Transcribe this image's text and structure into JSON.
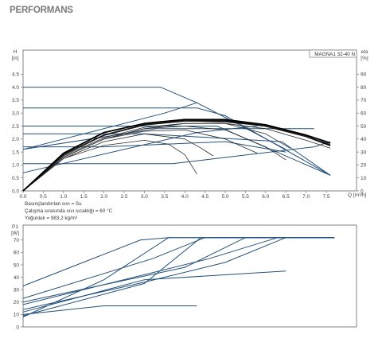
{
  "heading": "PERFORMANS",
  "legend_box": "MAGNA1 32-40 N",
  "fluid_notes": {
    "line1": "Basınçlandırılan sıvı = Su",
    "line2": "Çalışma sırasında sıvı sıcaklığı = 60 °C",
    "line3": "Yoğunluk = 983.2 kg/m³"
  },
  "chart_data": [
    {
      "type": "line",
      "title": "",
      "ylabel": "H",
      "yunit": "[m]",
      "y2label": "eta",
      "y2unit": "[%]",
      "xlabel": "Q",
      "xunit": "[m³/h]",
      "xlim": [
        0,
        8
      ],
      "ylim": [
        0,
        4.5
      ],
      "y2lim": [
        0,
        90
      ],
      "grid": false,
      "xticks": [
        "0.0",
        "0.5",
        "1.0",
        "1.5",
        "2.0",
        "2.5",
        "3.0",
        "3.5",
        "4.0",
        "4.5",
        "5.0",
        "5.5",
        "6.0",
        "6.5",
        "7.0",
        "7.5"
      ],
      "yticks": [
        "0.0",
        "0.5",
        "1.0",
        "1.5",
        "2.0",
        "2.5",
        "3.0",
        "3.5",
        "4.0",
        "4.5"
      ],
      "y2ticks": [
        "0",
        "10",
        "20",
        "30",
        "40",
        "50",
        "60",
        "70",
        "80",
        "90"
      ],
      "pump_curves": [
        {
          "x": [
            0,
            3.4,
            4.3,
            5.1,
            6.5
          ],
          "y": [
            4.0,
            4.0,
            3.4,
            2.75,
            1.6
          ]
        },
        {
          "x": [
            0,
            4.3,
            5.0,
            7.6
          ],
          "y": [
            3.2,
            3.2,
            2.9,
            0.6
          ]
        },
        {
          "x": [
            0,
            4.8,
            7.6
          ],
          "y": [
            2.5,
            2.5,
            0.6
          ]
        },
        {
          "x": [
            0,
            3.0,
            6.4,
            7.6
          ],
          "y": [
            2.2,
            2.2,
            1.9,
            0.6
          ]
        },
        {
          "x": [
            0,
            2.0,
            5.0,
            6.5
          ],
          "y": [
            1.7,
            1.7,
            1.9,
            1.5
          ]
        },
        {
          "x": [
            0,
            3.7,
            7.2,
            7.6
          ],
          "y": [
            1.05,
            1.05,
            1.7,
            1.9
          ]
        },
        {
          "x": [
            0,
            3.3,
            7.2
          ],
          "y": [
            1.6,
            2.4,
            2.4
          ]
        },
        {
          "x": [
            0,
            4.3,
            5.8
          ],
          "y": [
            0.7,
            2.25,
            2.5
          ]
        },
        {
          "x": [
            0,
            3.5,
            4.3
          ],
          "y": [
            1.6,
            3.0,
            3.4
          ]
        }
      ],
      "efficiency_curves": [
        {
          "x": [
            0,
            1.0,
            2.0,
            3.0,
            3.6,
            4.0,
            4.3
          ],
          "y": [
            0,
            25,
            35,
            39,
            36,
            28,
            13
          ]
        },
        {
          "x": [
            0,
            1.0,
            2.0,
            3.0,
            4.0,
            4.4,
            4.7
          ],
          "y": [
            0,
            25,
            38,
            44,
            40,
            33,
            27
          ]
        },
        {
          "x": [
            0,
            1.0,
            2.0,
            3.0,
            4.0,
            5.0,
            5.8
          ],
          "y": [
            0,
            26,
            40,
            46,
            47,
            40,
            29
          ]
        },
        {
          "x": [
            0,
            1.0,
            2.0,
            3.0,
            4.0,
            5.0,
            6.0,
            6.5
          ],
          "y": [
            0,
            26,
            40,
            48,
            50,
            47,
            34,
            24
          ]
        },
        {
          "x": [
            0,
            1.0,
            2.0,
            3.0,
            4.0,
            5.0,
            6.0,
            6.6
          ],
          "y": [
            0,
            26,
            40,
            48,
            52,
            52,
            44,
            33
          ]
        },
        {
          "x": [
            0,
            1.0,
            2.0,
            3.0,
            4.0,
            5.0,
            6.0,
            7.0,
            7.6
          ],
          "y": [
            0,
            27,
            41,
            49,
            52,
            52,
            48,
            39,
            33
          ]
        },
        {
          "x": [
            0,
            1.0,
            2.0,
            3.0,
            4.0,
            5.0,
            6.0,
            7.0,
            7.6
          ],
          "y": [
            0,
            28,
            43,
            51,
            54,
            54,
            50,
            42,
            35
          ]
        },
        {
          "x": [
            0,
            1.0,
            2.0,
            3.0,
            4.0,
            5.0,
            6.0,
            7.0,
            7.6
          ],
          "y": [
            0,
            28,
            43,
            51,
            54,
            53,
            50,
            42,
            36
          ]
        },
        {
          "x": [
            0,
            1.0,
            2.0,
            3.0,
            4.0,
            5.0,
            6.0,
            7.0,
            7.6
          ],
          "y": [
            0,
            29,
            45,
            52,
            55,
            55,
            51,
            43,
            37
          ]
        }
      ],
      "bold_efficiency": [
        6,
        8
      ]
    },
    {
      "type": "line",
      "title": "",
      "ylabel": "P1",
      "yunit": "[W]",
      "xlim": [
        0,
        8
      ],
      "ylim": [
        0,
        80
      ],
      "grid": false,
      "yticks": [
        "0",
        "10",
        "20",
        "30",
        "40",
        "50",
        "60",
        "70"
      ],
      "series": [
        {
          "x": [
            0,
            2.0,
            4.3
          ],
          "y": [
            10,
            17,
            17
          ]
        },
        {
          "x": [
            0,
            3.0,
            6.5
          ],
          "y": [
            12,
            38,
            45
          ]
        },
        {
          "x": [
            0,
            3.0,
            5.0,
            6.5
          ],
          "y": [
            14,
            36,
            52,
            72
          ]
        },
        {
          "x": [
            0,
            4.6,
            6.3,
            7.7
          ],
          "y": [
            18,
            55,
            72,
            72
          ]
        },
        {
          "x": [
            0,
            4.0,
            5.5,
            7.7
          ],
          "y": [
            20,
            48,
            72,
            72
          ]
        },
        {
          "x": [
            0,
            3.0,
            4.4,
            7.7
          ],
          "y": [
            9,
            35,
            72,
            72
          ]
        },
        {
          "x": [
            0,
            3.2,
            4.5,
            7.7
          ],
          "y": [
            23,
            55,
            72,
            72
          ]
        },
        {
          "x": [
            0,
            2.0,
            3.6,
            7.7
          ],
          "y": [
            8,
            38,
            72,
            72
          ]
        },
        {
          "x": [
            0,
            2.9,
            3.6,
            4.2,
            7.7
          ],
          "y": [
            33,
            70,
            72,
            72,
            72
          ]
        }
      ]
    }
  ]
}
